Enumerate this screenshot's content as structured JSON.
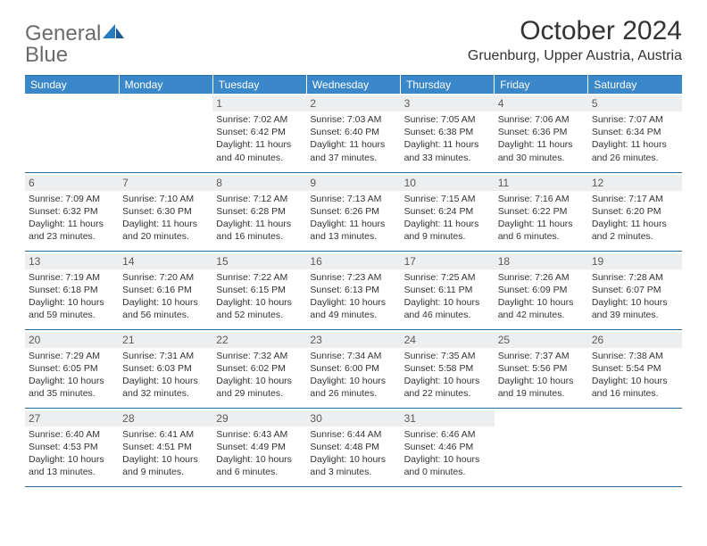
{
  "brand": {
    "word1": "General",
    "word2": "Blue"
  },
  "title": "October 2024",
  "location": "Gruenburg, Upper Austria, Austria",
  "colors": {
    "header_bg": "#3a88c9",
    "header_text": "#ffffff",
    "rule": "#2b6ca3",
    "daynum_bg": "#eceef0",
    "text": "#333333",
    "logo_gray": "#6b6b6b",
    "logo_blue": "#2b7bbf"
  },
  "day_labels": [
    "Sunday",
    "Monday",
    "Tuesday",
    "Wednesday",
    "Thursday",
    "Friday",
    "Saturday"
  ],
  "weeks": [
    [
      null,
      null,
      {
        "n": "1",
        "sunrise": "7:02 AM",
        "sunset": "6:42 PM",
        "day": "11 hours and 40 minutes."
      },
      {
        "n": "2",
        "sunrise": "7:03 AM",
        "sunset": "6:40 PM",
        "day": "11 hours and 37 minutes."
      },
      {
        "n": "3",
        "sunrise": "7:05 AM",
        "sunset": "6:38 PM",
        "day": "11 hours and 33 minutes."
      },
      {
        "n": "4",
        "sunrise": "7:06 AM",
        "sunset": "6:36 PM",
        "day": "11 hours and 30 minutes."
      },
      {
        "n": "5",
        "sunrise": "7:07 AM",
        "sunset": "6:34 PM",
        "day": "11 hours and 26 minutes."
      }
    ],
    [
      {
        "n": "6",
        "sunrise": "7:09 AM",
        "sunset": "6:32 PM",
        "day": "11 hours and 23 minutes."
      },
      {
        "n": "7",
        "sunrise": "7:10 AM",
        "sunset": "6:30 PM",
        "day": "11 hours and 20 minutes."
      },
      {
        "n": "8",
        "sunrise": "7:12 AM",
        "sunset": "6:28 PM",
        "day": "11 hours and 16 minutes."
      },
      {
        "n": "9",
        "sunrise": "7:13 AM",
        "sunset": "6:26 PM",
        "day": "11 hours and 13 minutes."
      },
      {
        "n": "10",
        "sunrise": "7:15 AM",
        "sunset": "6:24 PM",
        "day": "11 hours and 9 minutes."
      },
      {
        "n": "11",
        "sunrise": "7:16 AM",
        "sunset": "6:22 PM",
        "day": "11 hours and 6 minutes."
      },
      {
        "n": "12",
        "sunrise": "7:17 AM",
        "sunset": "6:20 PM",
        "day": "11 hours and 2 minutes."
      }
    ],
    [
      {
        "n": "13",
        "sunrise": "7:19 AM",
        "sunset": "6:18 PM",
        "day": "10 hours and 59 minutes."
      },
      {
        "n": "14",
        "sunrise": "7:20 AM",
        "sunset": "6:16 PM",
        "day": "10 hours and 56 minutes."
      },
      {
        "n": "15",
        "sunrise": "7:22 AM",
        "sunset": "6:15 PM",
        "day": "10 hours and 52 minutes."
      },
      {
        "n": "16",
        "sunrise": "7:23 AM",
        "sunset": "6:13 PM",
        "day": "10 hours and 49 minutes."
      },
      {
        "n": "17",
        "sunrise": "7:25 AM",
        "sunset": "6:11 PM",
        "day": "10 hours and 46 minutes."
      },
      {
        "n": "18",
        "sunrise": "7:26 AM",
        "sunset": "6:09 PM",
        "day": "10 hours and 42 minutes."
      },
      {
        "n": "19",
        "sunrise": "7:28 AM",
        "sunset": "6:07 PM",
        "day": "10 hours and 39 minutes."
      }
    ],
    [
      {
        "n": "20",
        "sunrise": "7:29 AM",
        "sunset": "6:05 PM",
        "day": "10 hours and 35 minutes."
      },
      {
        "n": "21",
        "sunrise": "7:31 AM",
        "sunset": "6:03 PM",
        "day": "10 hours and 32 minutes."
      },
      {
        "n": "22",
        "sunrise": "7:32 AM",
        "sunset": "6:02 PM",
        "day": "10 hours and 29 minutes."
      },
      {
        "n": "23",
        "sunrise": "7:34 AM",
        "sunset": "6:00 PM",
        "day": "10 hours and 26 minutes."
      },
      {
        "n": "24",
        "sunrise": "7:35 AM",
        "sunset": "5:58 PM",
        "day": "10 hours and 22 minutes."
      },
      {
        "n": "25",
        "sunrise": "7:37 AM",
        "sunset": "5:56 PM",
        "day": "10 hours and 19 minutes."
      },
      {
        "n": "26",
        "sunrise": "7:38 AM",
        "sunset": "5:54 PM",
        "day": "10 hours and 16 minutes."
      }
    ],
    [
      {
        "n": "27",
        "sunrise": "6:40 AM",
        "sunset": "4:53 PM",
        "day": "10 hours and 13 minutes."
      },
      {
        "n": "28",
        "sunrise": "6:41 AM",
        "sunset": "4:51 PM",
        "day": "10 hours and 9 minutes."
      },
      {
        "n": "29",
        "sunrise": "6:43 AM",
        "sunset": "4:49 PM",
        "day": "10 hours and 6 minutes."
      },
      {
        "n": "30",
        "sunrise": "6:44 AM",
        "sunset": "4:48 PM",
        "day": "10 hours and 3 minutes."
      },
      {
        "n": "31",
        "sunrise": "6:46 AM",
        "sunset": "4:46 PM",
        "day": "10 hours and 0 minutes."
      },
      null,
      null
    ]
  ],
  "labels": {
    "sunrise": "Sunrise:",
    "sunset": "Sunset:",
    "daylight": "Daylight:"
  }
}
